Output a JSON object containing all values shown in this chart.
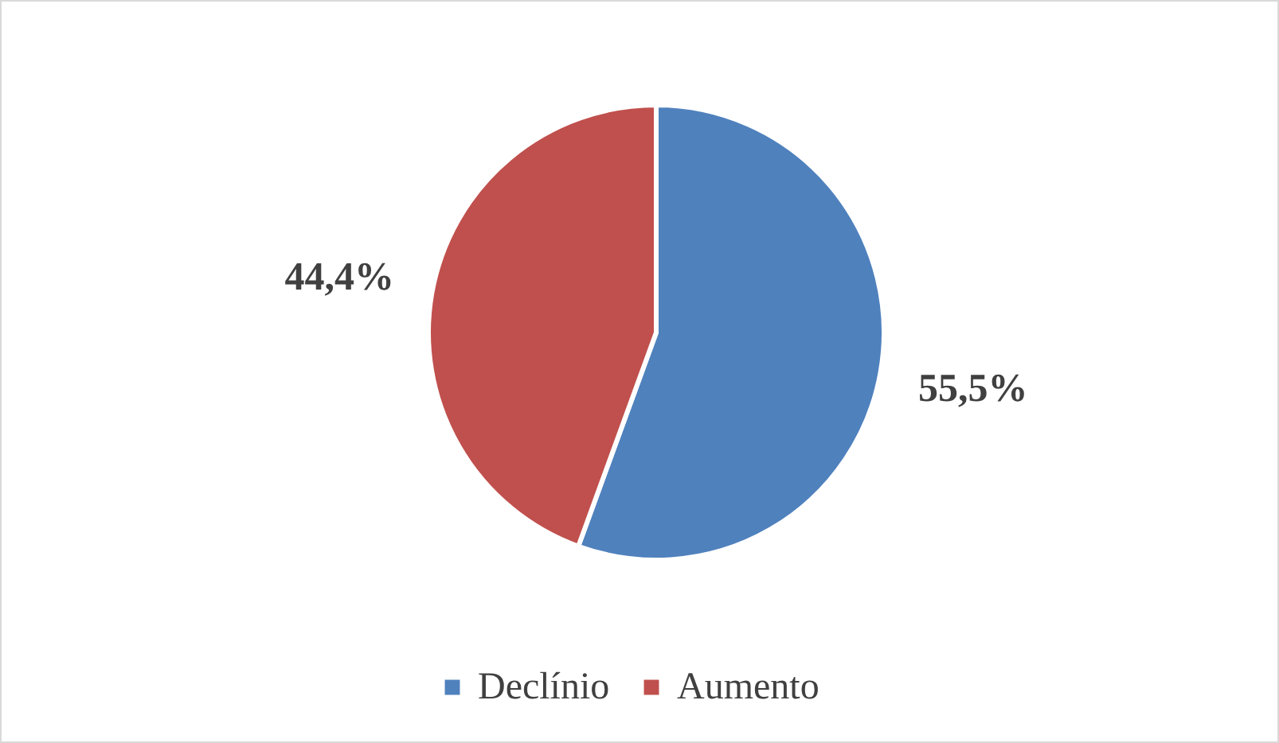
{
  "chart_data": {
    "type": "pie",
    "categories": [
      "Declínio",
      "Aumento"
    ],
    "values": [
      55.5,
      44.4
    ],
    "colors": [
      "#4f81bd",
      "#c0504d"
    ],
    "value_labels": [
      "55,5%",
      "44,4%"
    ],
    "legend": "bottom"
  }
}
